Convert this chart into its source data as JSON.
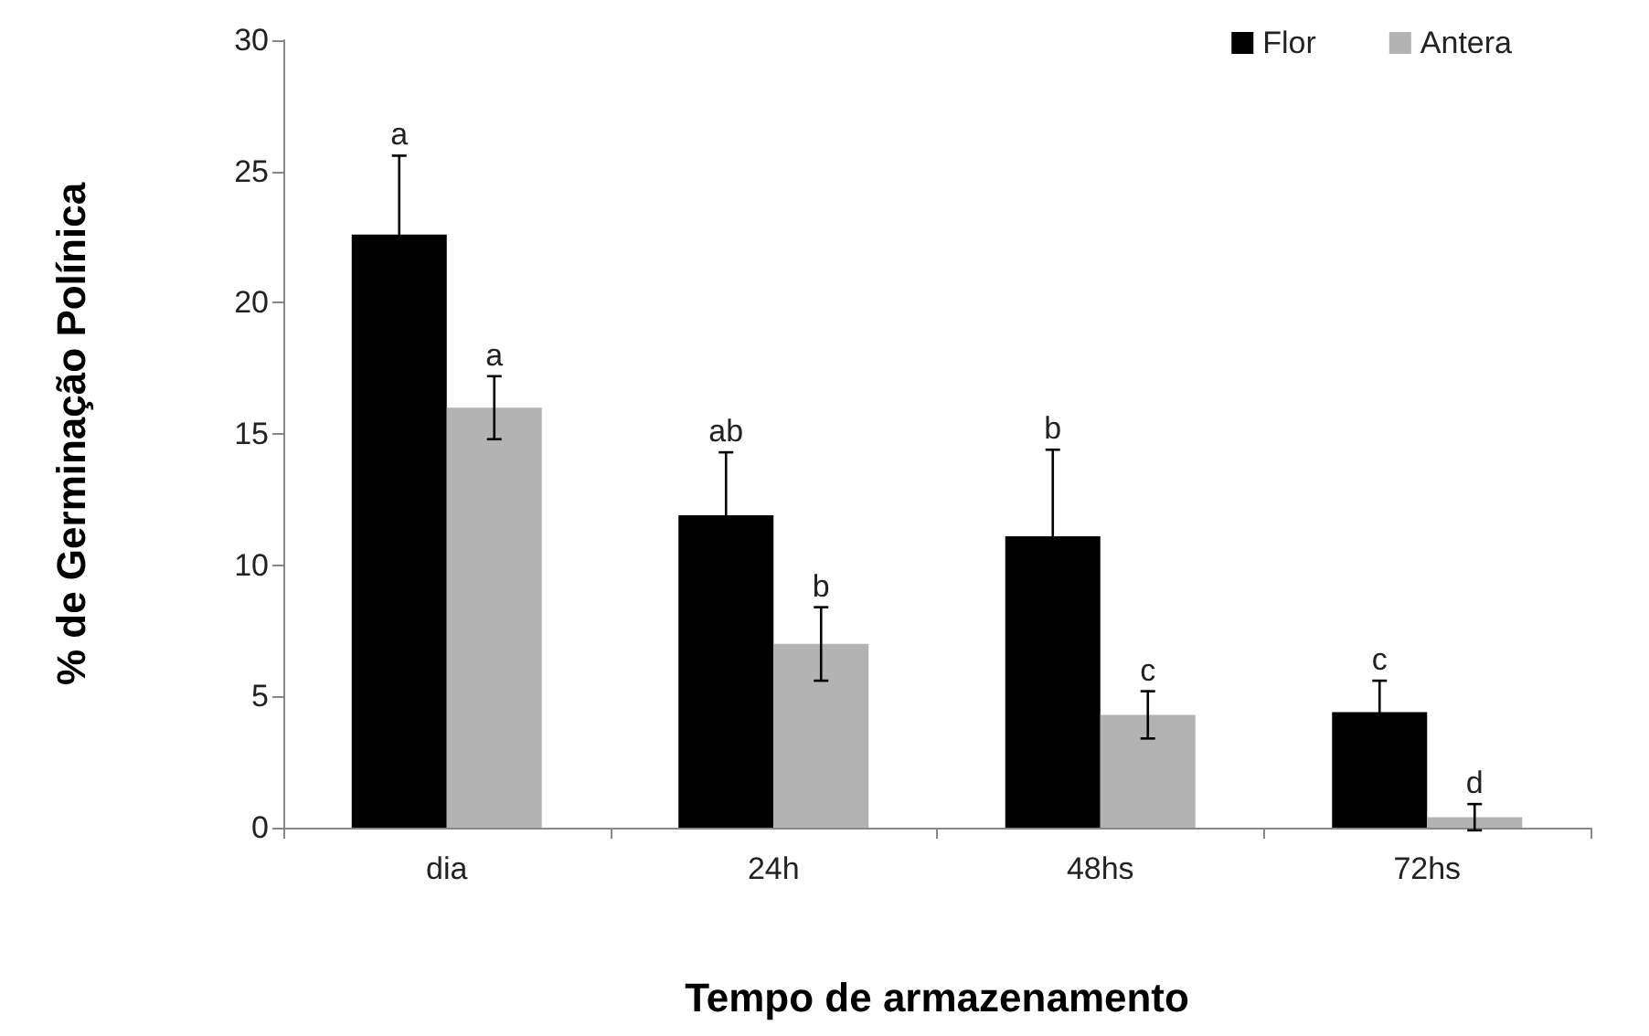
{
  "chart_data": {
    "type": "bar",
    "xlabel": "Tempo de armazenamento",
    "ylabel": "% de Germinação Polínica",
    "categories": [
      "dia",
      "24h",
      "48hs",
      "72hs"
    ],
    "series": [
      {
        "name": "Flor",
        "color": "#000000",
        "values": [
          22.6,
          11.9,
          11.1,
          4.4
        ],
        "errors": [
          3.0,
          2.4,
          3.3,
          1.2
        ]
      },
      {
        "name": "Antera",
        "color": "#b3b3b3",
        "values": [
          16.0,
          7.0,
          4.3,
          0.4
        ],
        "errors": [
          1.2,
          1.4,
          0.9,
          0.5
        ]
      }
    ],
    "ylim": [
      0,
      30
    ],
    "yticks": [
      0,
      5,
      10,
      15,
      20,
      25,
      30
    ],
    "grid": false,
    "legend": "top right",
    "annotations": [
      "a",
      "a",
      "ab",
      "b",
      "b",
      "c",
      "c",
      "d"
    ]
  }
}
